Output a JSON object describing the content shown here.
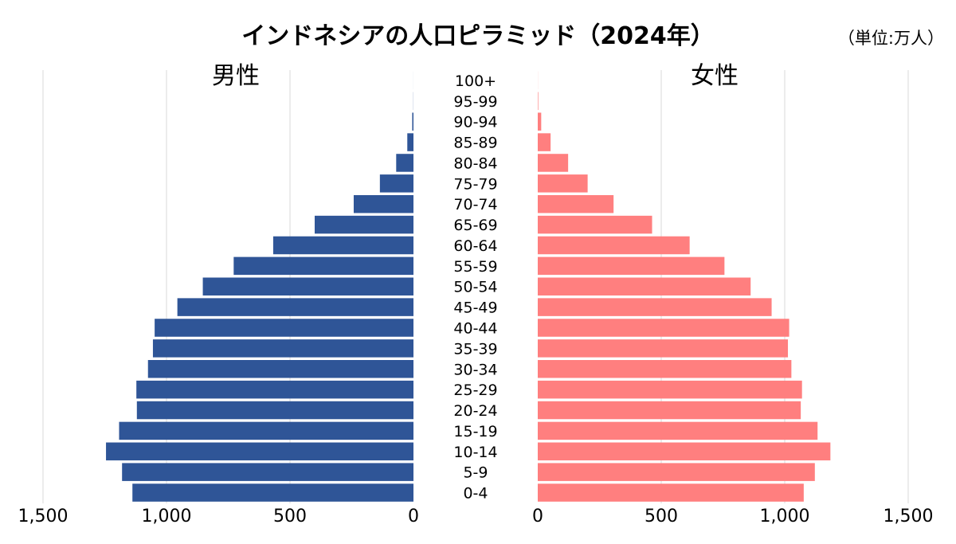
{
  "chart_data": {
    "type": "bar",
    "orientation": "horizontal-pyramid",
    "title": "インドネシアの人口ピラミッド（2024年）",
    "unit_label": "（単位:万人）",
    "categories": [
      "0-4",
      "5-9",
      "10-14",
      "15-19",
      "20-24",
      "25-29",
      "30-34",
      "35-39",
      "40-44",
      "45-49",
      "50-54",
      "55-59",
      "60-64",
      "65-69",
      "70-74",
      "75-79",
      "80-84",
      "85-89",
      "90-94",
      "95-99",
      "100+"
    ],
    "series": [
      {
        "name": "男性",
        "color": "#2f5597",
        "values": [
          1138,
          1180,
          1245,
          1192,
          1120,
          1122,
          1075,
          1055,
          1048,
          956,
          853,
          728,
          568,
          400,
          242,
          136,
          70,
          25,
          5,
          0.5,
          0.1
        ]
      },
      {
        "name": "女性",
        "color": "#ff7f7f",
        "values": [
          1077,
          1122,
          1185,
          1133,
          1065,
          1070,
          1027,
          1013,
          1018,
          947,
          862,
          756,
          615,
          463,
          307,
          202,
          123,
          52,
          14,
          2,
          0.3
        ]
      }
    ],
    "axis_ticks": [
      "0",
      "500",
      "1,000",
      "1,500"
    ],
    "xlim": [
      0,
      1500
    ],
    "grid": true
  }
}
